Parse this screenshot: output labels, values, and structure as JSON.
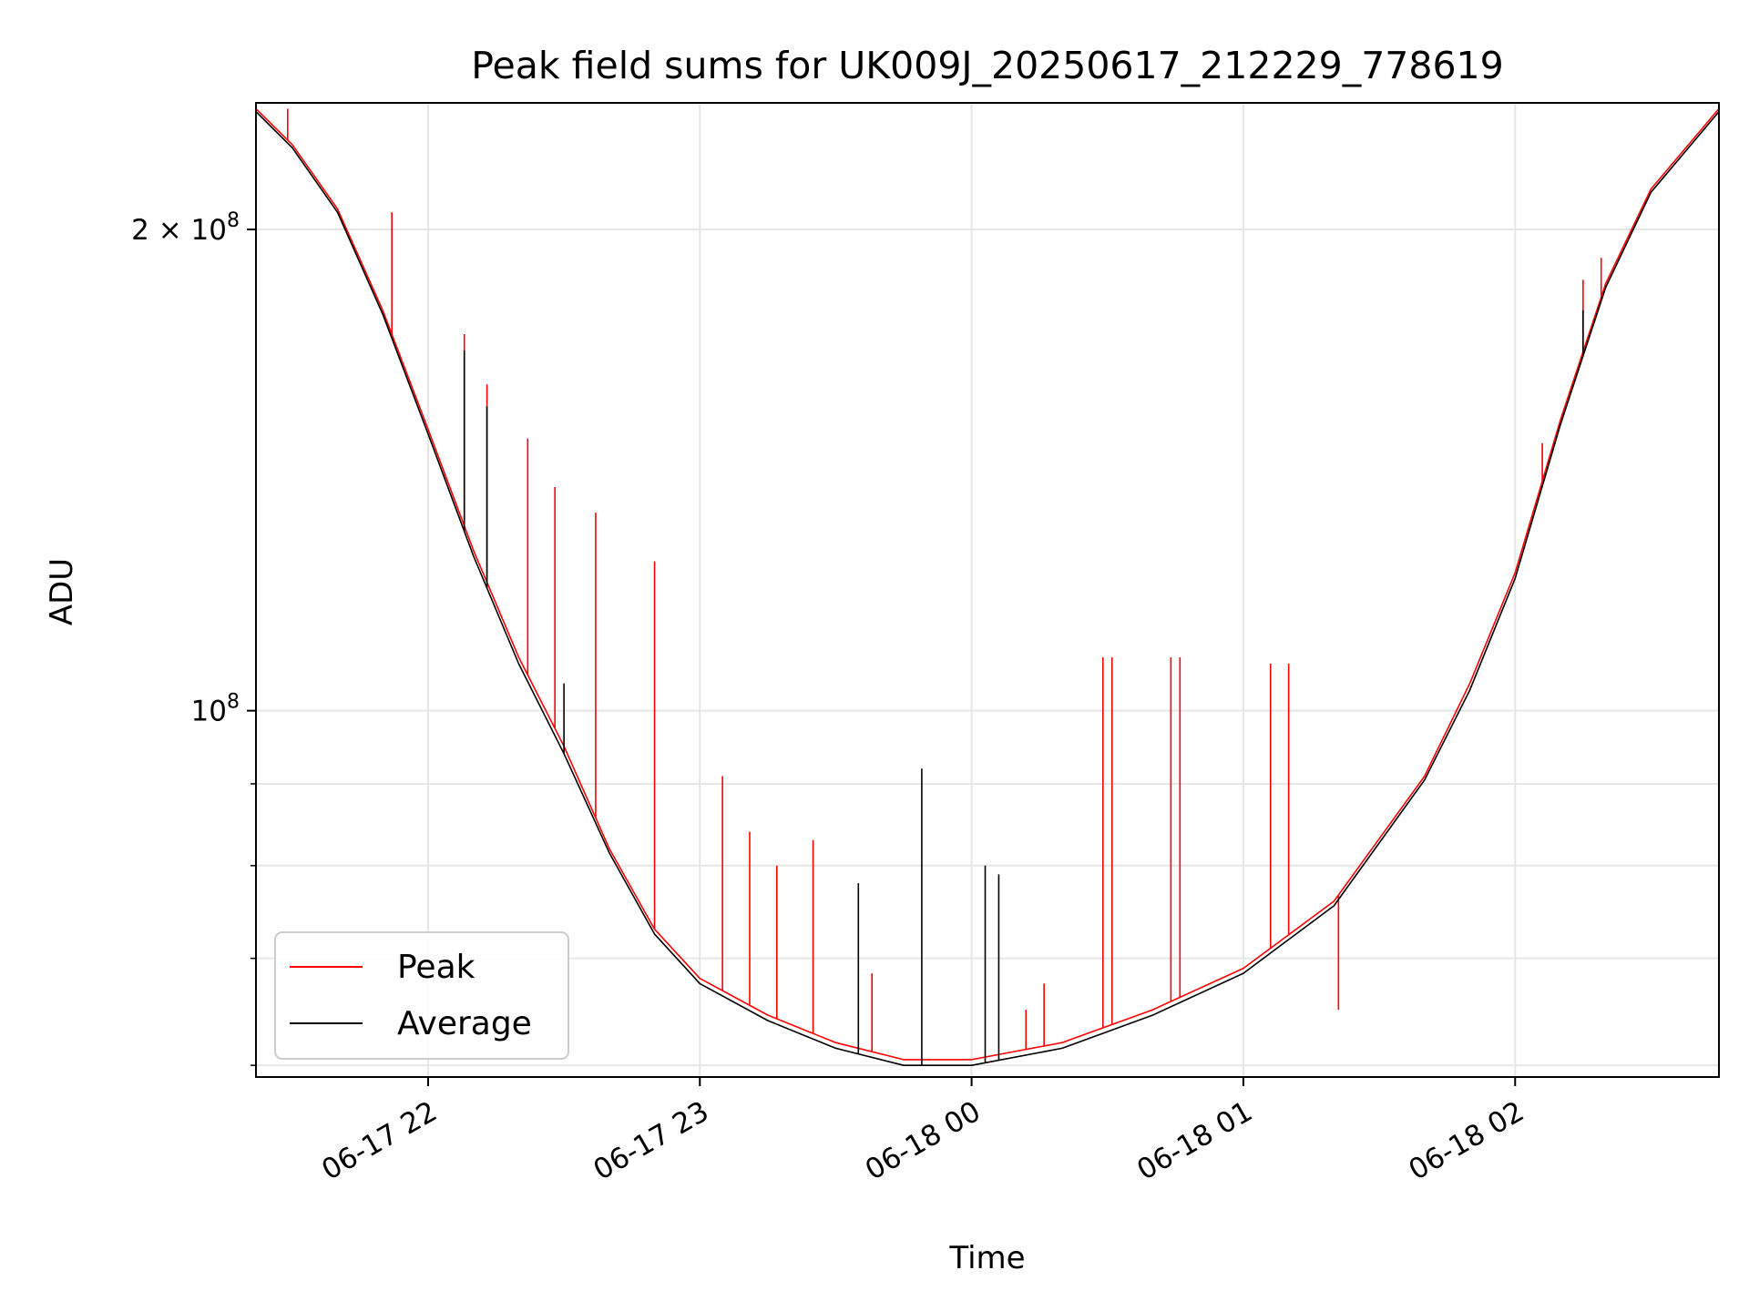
{
  "chart_data": {
    "type": "line",
    "title": "Peak field sums for UK009J_20250617_212229_778619",
    "xlabel": "Time",
    "ylabel": "ADU",
    "yscale": "log",
    "xlim": [
      "2025-06-17 21:22",
      "2025-06-18 02:45"
    ],
    "ylim": [
      59000000,
      240000000
    ],
    "x_ticks": [
      {
        "value": "2025-06-17 22:00",
        "label": "06-17 22"
      },
      {
        "value": "2025-06-17 23:00",
        "label": "06-17 23"
      },
      {
        "value": "2025-06-18 00:00",
        "label": "06-18 00"
      },
      {
        "value": "2025-06-18 01:00",
        "label": "06-18 01"
      },
      {
        "value": "2025-06-18 02:00",
        "label": "06-18 02"
      }
    ],
    "y_ticks_major": [
      {
        "value": 100000000,
        "base": "10",
        "exp": "8",
        "mant": ""
      },
      {
        "value": 200000000,
        "base": "10",
        "exp": "8",
        "mant": "2 × "
      }
    ],
    "y_ticks_minor": [
      60000000,
      70000000,
      80000000,
      90000000
    ],
    "grid": true,
    "legend": "lower-left",
    "series": [
      {
        "name": "Peak",
        "color": "#ff0000",
        "points": [
          [
            "2025-06-17 21:22",
            238000000
          ],
          [
            "2025-06-17 21:30",
            226000000
          ],
          [
            "2025-06-17 21:40",
            206000000
          ],
          [
            "2025-06-17 21:50",
            178000000
          ],
          [
            "2025-06-17 22:00",
            150000000
          ],
          [
            "2025-06-17 22:10",
            126000000
          ],
          [
            "2025-06-17 22:20",
            108000000
          ],
          [
            "2025-06-17 22:30",
            95000000
          ],
          [
            "2025-06-17 22:40",
            82000000
          ],
          [
            "2025-06-17 22:50",
            73000000
          ],
          [
            "2025-06-17 23:00",
            68000000
          ],
          [
            "2025-06-17 23:15",
            64500000
          ],
          [
            "2025-06-17 23:30",
            62000000
          ],
          [
            "2025-06-17 23:45",
            60500000
          ],
          [
            "2025-06-18 00:00",
            60500000
          ],
          [
            "2025-06-18 00:20",
            62000000
          ],
          [
            "2025-06-18 00:40",
            65000000
          ],
          [
            "2025-06-18 01:00",
            69000000
          ],
          [
            "2025-06-18 01:20",
            76000000
          ],
          [
            "2025-06-18 01:40",
            91000000
          ],
          [
            "2025-06-18 01:50",
            104000000
          ],
          [
            "2025-06-18 02:00",
            122000000
          ],
          [
            "2025-06-18 02:10",
            152000000
          ],
          [
            "2025-06-18 02:20",
            185000000
          ],
          [
            "2025-06-18 02:30",
            212000000
          ],
          [
            "2025-06-18 02:45",
            238000000
          ]
        ],
        "spikes": [
          [
            "2025-06-17 21:29",
            238000000
          ],
          [
            "2025-06-17 21:52",
            205000000
          ],
          [
            "2025-06-17 22:08",
            172000000
          ],
          [
            "2025-06-17 22:13",
            160000000
          ],
          [
            "2025-06-17 22:22",
            148000000
          ],
          [
            "2025-06-17 22:28",
            138000000
          ],
          [
            "2025-06-17 22:37",
            133000000
          ],
          [
            "2025-06-17 22:50",
            124000000
          ],
          [
            "2025-06-17 23:05",
            91000000
          ],
          [
            "2025-06-17 23:11",
            84000000
          ],
          [
            "2025-06-17 23:17",
            80000000
          ],
          [
            "2025-06-17 23:25",
            83000000
          ],
          [
            "2025-06-17 23:38",
            68500000
          ],
          [
            "2025-06-18 00:12",
            65000000
          ],
          [
            "2025-06-18 00:16",
            67500000
          ],
          [
            "2025-06-18 00:29",
            108000000
          ],
          [
            "2025-06-18 00:31",
            108000000
          ],
          [
            "2025-06-18 00:44",
            108000000
          ],
          [
            "2025-06-18 00:46",
            108000000
          ],
          [
            "2025-06-18 01:06",
            107000000
          ],
          [
            "2025-06-18 01:10",
            107000000
          ],
          [
            "2025-06-18 01:21",
            65000000
          ],
          [
            "2025-06-18 02:06",
            147000000
          ],
          [
            "2025-06-18 02:15",
            186000000
          ],
          [
            "2025-06-18 02:19",
            192000000
          ]
        ]
      },
      {
        "name": "Average",
        "color": "#000000",
        "points": [
          [
            "2025-06-17 21:22",
            237000000
          ],
          [
            "2025-06-17 21:30",
            225000000
          ],
          [
            "2025-06-17 21:40",
            205000000
          ],
          [
            "2025-06-17 21:50",
            177000000
          ],
          [
            "2025-06-17 22:00",
            149000000
          ],
          [
            "2025-06-17 22:10",
            125000000
          ],
          [
            "2025-06-17 22:20",
            107000000
          ],
          [
            "2025-06-17 22:30",
            94000000
          ],
          [
            "2025-06-17 22:40",
            81500000
          ],
          [
            "2025-06-17 22:50",
            72500000
          ],
          [
            "2025-06-17 23:00",
            67500000
          ],
          [
            "2025-06-17 23:15",
            64000000
          ],
          [
            "2025-06-17 23:30",
            61500000
          ],
          [
            "2025-06-17 23:45",
            60000000
          ],
          [
            "2025-06-18 00:00",
            60000000
          ],
          [
            "2025-06-18 00:20",
            61500000
          ],
          [
            "2025-06-18 00:40",
            64500000
          ],
          [
            "2025-06-18 01:00",
            68500000
          ],
          [
            "2025-06-18 01:20",
            75500000
          ],
          [
            "2025-06-18 01:40",
            90500000
          ],
          [
            "2025-06-18 01:50",
            103000000
          ],
          [
            "2025-06-18 02:00",
            121000000
          ],
          [
            "2025-06-18 02:10",
            151000000
          ],
          [
            "2025-06-18 02:20",
            184000000
          ],
          [
            "2025-06-18 02:30",
            211000000
          ],
          [
            "2025-06-18 02:45",
            237000000
          ]
        ],
        "spikes": [
          [
            "2025-06-17 22:08",
            168000000
          ],
          [
            "2025-06-17 22:13",
            155000000
          ],
          [
            "2025-06-17 22:30",
            104000000
          ],
          [
            "2025-06-17 23:35",
            78000000
          ],
          [
            "2025-06-17 23:49",
            92000000
          ],
          [
            "2025-06-18 00:03",
            80000000
          ],
          [
            "2025-06-18 00:06",
            79000000
          ],
          [
            "2025-06-18 02:06",
            138000000
          ],
          [
            "2025-06-18 02:15",
            178000000
          ]
        ]
      }
    ]
  }
}
